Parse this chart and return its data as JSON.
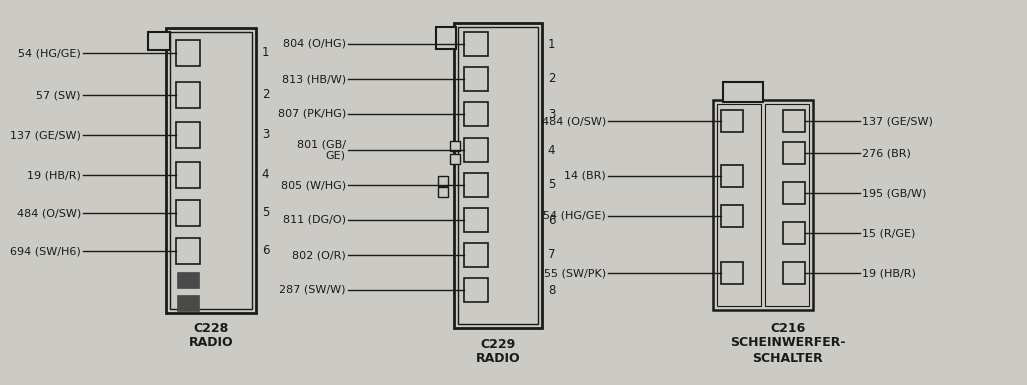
{
  "bg_color": "#cbcac4",
  "line_color": "#1a1a1a",
  "dark_fill": "#4a4a4a",
  "c228": {
    "title": "C228",
    "subtitle": "RADIO",
    "pins": [
      "54 (HG/GE)",
      "57 (SW)",
      "137 (GE/SW)",
      "19 (HB/R)",
      "484 (O/SW)",
      "694 (SW/H6)"
    ]
  },
  "c229": {
    "title": "C229",
    "subtitle": "RADIO",
    "pins": [
      "804 (O/HG)",
      "813 (HB/W)",
      "807 (PK/HG)",
      "801 (GB/\nGE)",
      "805 (W/HG)",
      "811 (DG/O)",
      "802 (O/R)",
      "287 (SW/W)"
    ]
  },
  "c216": {
    "title": "C216",
    "subtitle": "SCHEINWERFER-\nSCHALTER",
    "left_pins": [
      "484 (O/SW)",
      "14 (BR)",
      "54 (HG/GE)",
      "55 (SW/PK)"
    ],
    "right_pins": [
      "137 (GE/SW)",
      "276 (BR)",
      "195 (GB/W)",
      "15 (R/GE)",
      "19 (HB/R)"
    ]
  }
}
